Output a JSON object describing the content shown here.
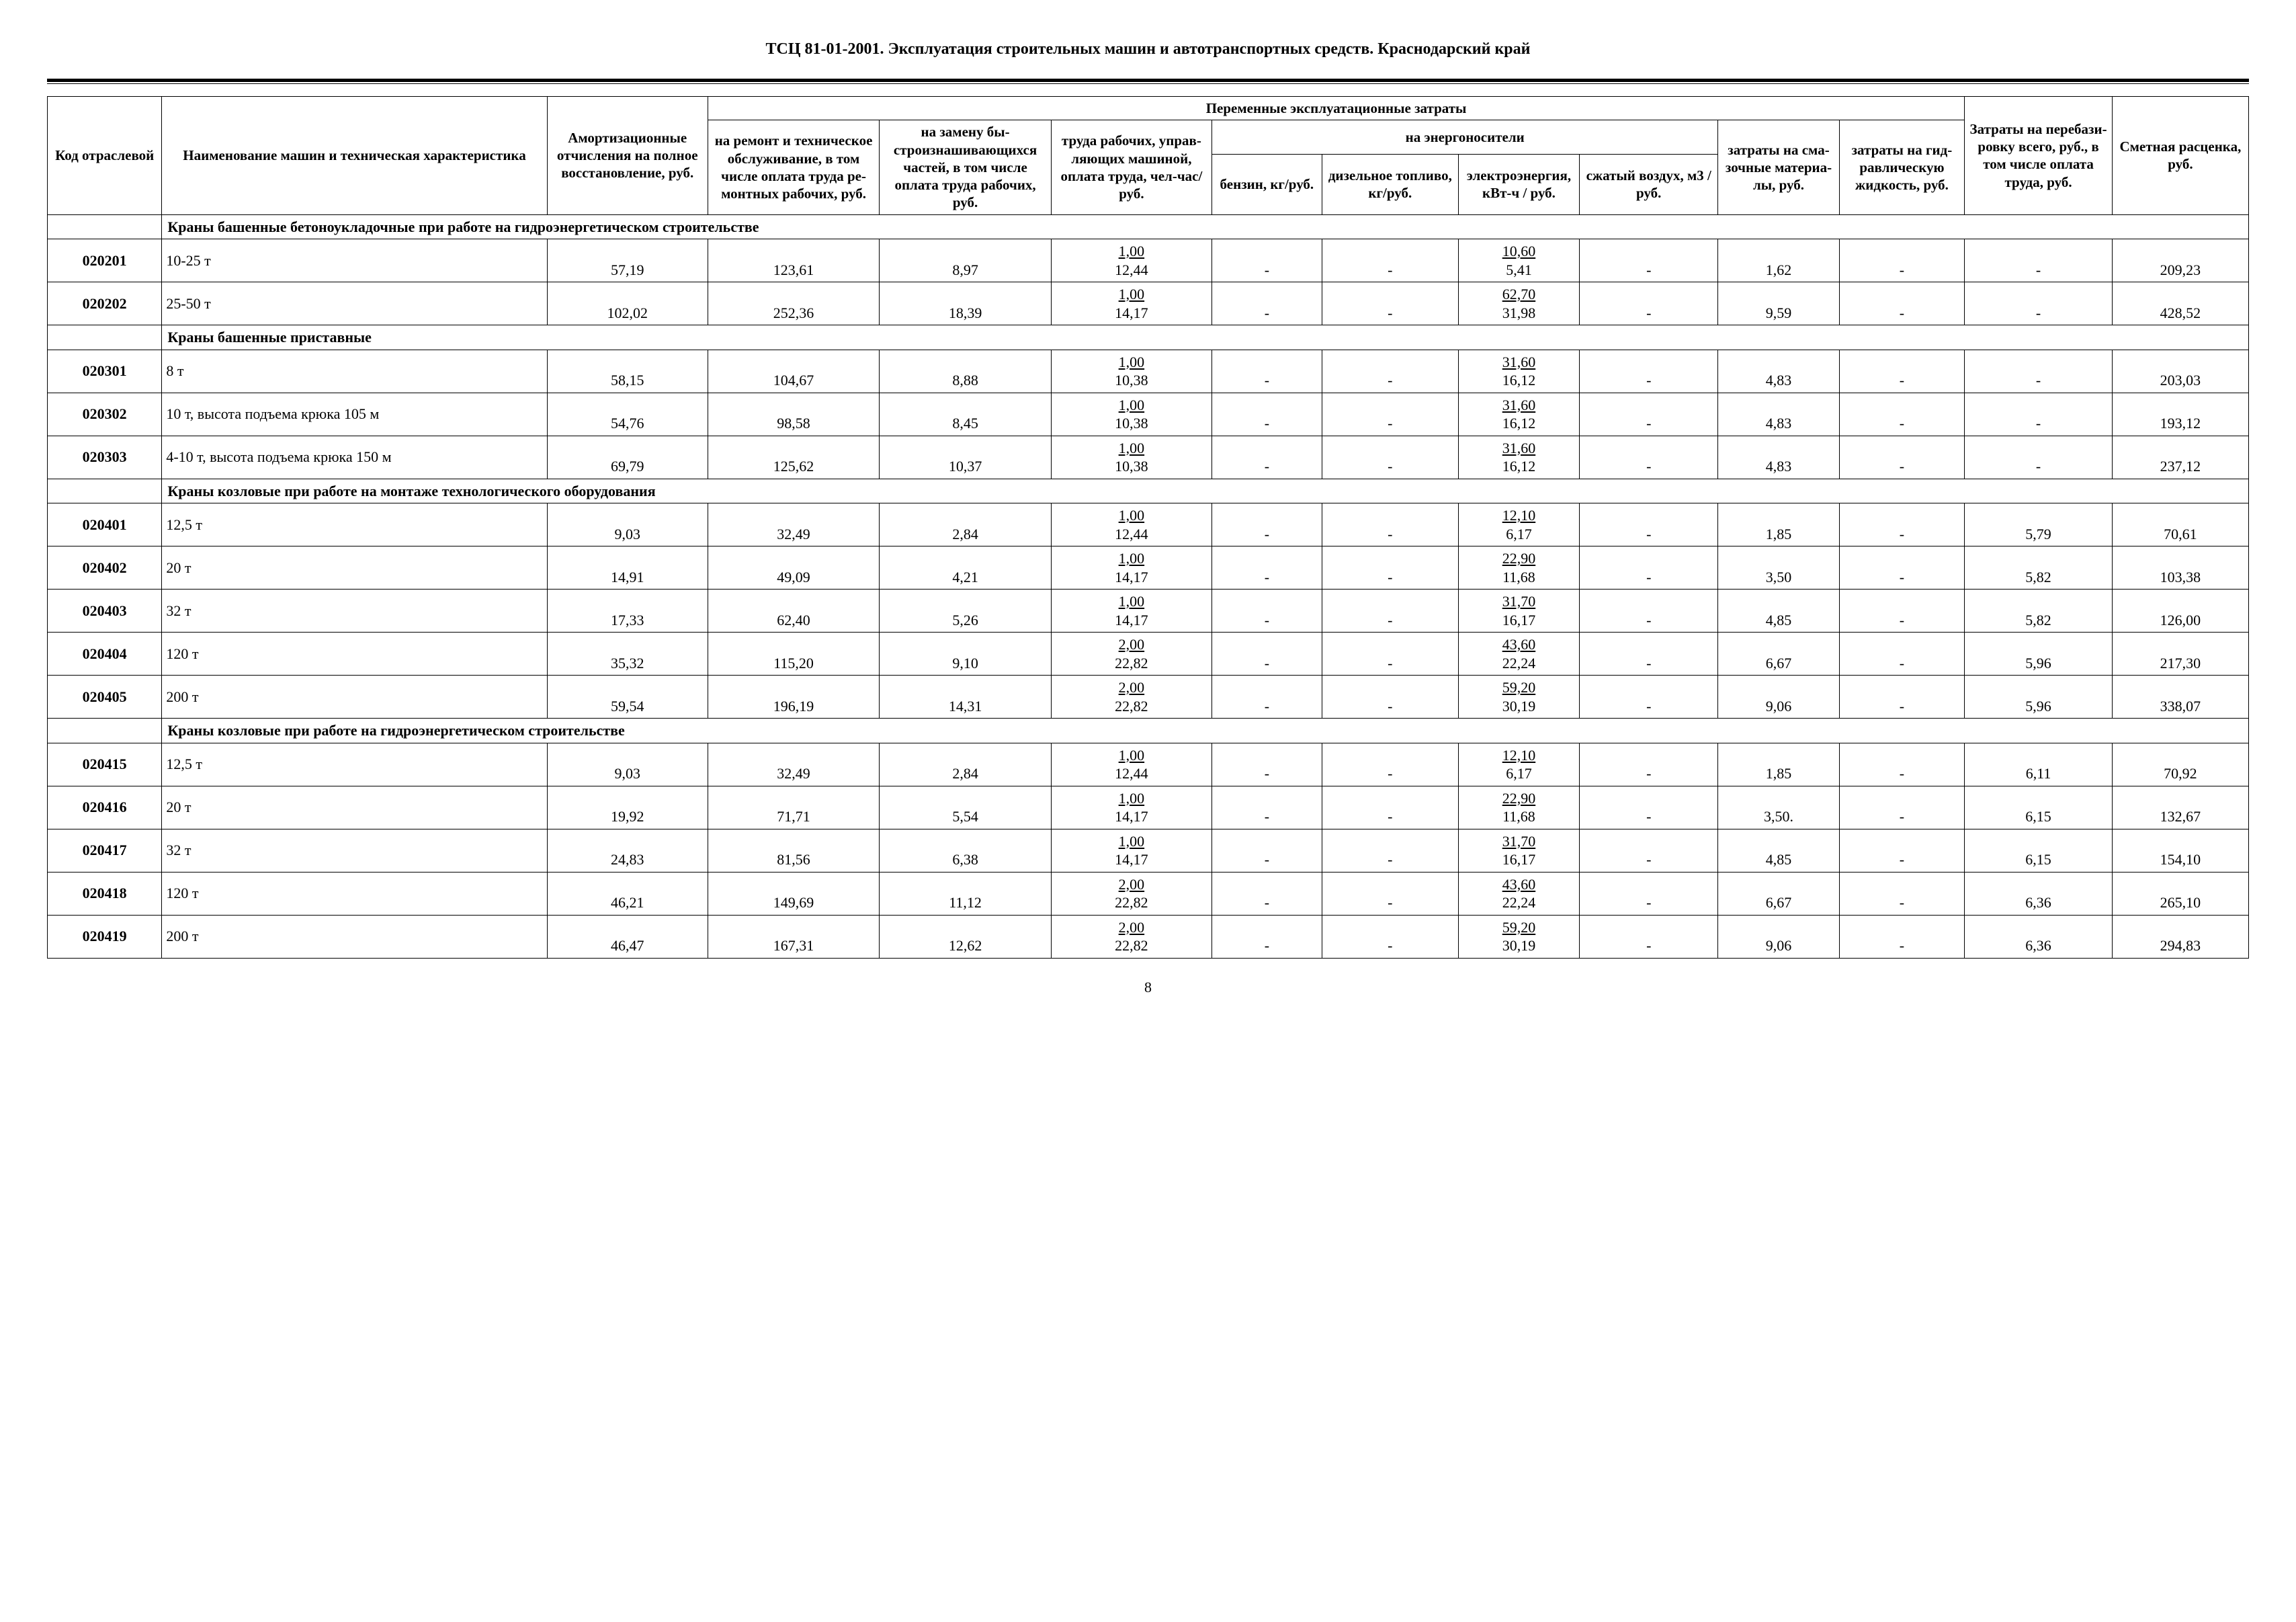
{
  "title": "ТСЦ 81-01-2001. Эксплуатация строительных машин и автотранспортных средств. Краснодарский край",
  "page_number": "8",
  "headers": {
    "code": "Код от­расле­вой",
    "name": "Наименование машин и техниче­ская характеристика",
    "amort": "Амортиза­ционные отчисления на полное восстанов­ление, руб.",
    "var_group": "Переменные эксплуатационные затраты",
    "repair": "на ремонт и техническое обслужива­ние, в том числе оплата труда ре­монтных ра­бочих, руб.",
    "wear": "на замену бы­строизнаши­вающихся частей, в том числе оплата труда рабо­чих, руб.",
    "labor": "труда рабо­чих, управ­ляющих машиной, оплата тру­да, чел-час/руб.",
    "energy_group": "на энергоносители",
    "petrol": "бензин, кг/руб.",
    "diesel": "дизельное топливо, кг/руб.",
    "electro": "электро­энергия, кВт-ч / руб.",
    "air": "сжатый воздух, м3 / руб.",
    "lube": "затраты на сма­зочные материа­лы, руб.",
    "hydro": "затраты на гид­равличе­скую жид­кость, руб.",
    "rebase": "Затраты на перебази­ровку всего, руб., в том числе опла­та труда, руб.",
    "estimate": "Сметная рас­ценка, руб."
  },
  "sections": [
    {
      "title": "Краны башенные бетоноукладочные при работе на гидроэнергетическом строительстве",
      "rows": [
        {
          "code": "020201",
          "name": "10-25 т",
          "amort": "57,19",
          "repair": "123,61",
          "wear": "8,97",
          "labor_t": "1,00",
          "labor_b": "12,44",
          "petrol": "-",
          "diesel": "-",
          "electro_t": "10,60",
          "electro_b": "5,41",
          "air": "-",
          "lube": "1,62",
          "hydro": "-",
          "rebase": "-",
          "est": "209,23"
        },
        {
          "code": "020202",
          "name": "25-50 т",
          "amort": "102,02",
          "repair": "252,36",
          "wear": "18,39",
          "labor_t": "1,00",
          "labor_b": "14,17",
          "petrol": "-",
          "diesel": "-",
          "electro_t": "62,70",
          "electro_b": "31,98",
          "air": "-",
          "lube": "9,59",
          "hydro": "-",
          "rebase": "-",
          "est": "428,52"
        }
      ]
    },
    {
      "title": "Краны башенные приставные",
      "rows": [
        {
          "code": "020301",
          "name": "8 т",
          "amort": "58,15",
          "repair": "104,67",
          "wear": "8,88",
          "labor_t": "1,00",
          "labor_b": "10,38",
          "petrol": "-",
          "diesel": "-",
          "electro_t": "31,60",
          "electro_b": "16,12",
          "air": "-",
          "lube": "4,83",
          "hydro": "-",
          "rebase": "-",
          "est": "203,03"
        },
        {
          "code": "020302",
          "name": "10 т, высота подъема крюка 105 м",
          "amort": "54,76",
          "repair": "98,58",
          "wear": "8,45",
          "labor_t": "1,00",
          "labor_b": "10,38",
          "petrol": "-",
          "diesel": "-",
          "electro_t": "31,60",
          "electro_b": "16,12",
          "air": "-",
          "lube": "4,83",
          "hydro": "-",
          "rebase": "-",
          "est": "193,12"
        },
        {
          "code": "020303",
          "name": "4-10 т, высота подъема крюка 150 м",
          "amort": "69,79",
          "repair": "125,62",
          "wear": "10,37",
          "labor_t": "1,00",
          "labor_b": "10,38",
          "petrol": "-",
          "diesel": "-",
          "electro_t": "31,60",
          "electro_b": "16,12",
          "air": "-",
          "lube": "4,83",
          "hydro": "-",
          "rebase": "-",
          "est": "237,12"
        }
      ]
    },
    {
      "title": "Краны козловые при работе на монтаже технологического оборудования",
      "rows": [
        {
          "code": "020401",
          "name": "12,5 т",
          "amort": "9,03",
          "repair": "32,49",
          "wear": "2,84",
          "labor_t": "1,00",
          "labor_b": "12,44",
          "petrol": "-",
          "diesel": "-",
          "electro_t": "12,10",
          "electro_b": "6,17",
          "air": "-",
          "lube": "1,85",
          "hydro": "-",
          "rebase": "5,79",
          "est": "70,61"
        },
        {
          "code": "020402",
          "name": "20 т",
          "amort": "14,91",
          "repair": "49,09",
          "wear": "4,21",
          "labor_t": "1,00",
          "labor_b": "14,17",
          "petrol": "-",
          "diesel": "-",
          "electro_t": "22,90",
          "electro_b": "11,68",
          "air": "-",
          "lube": "3,50",
          "hydro": "-",
          "rebase": "5,82",
          "est": "103,38"
        },
        {
          "code": "020403",
          "name": "32 т",
          "amort": "17,33",
          "repair": "62,40",
          "wear": "5,26",
          "labor_t": "1,00",
          "labor_b": "14,17",
          "petrol": "-",
          "diesel": "-",
          "electro_t": "31,70",
          "electro_b": "16,17",
          "air": "-",
          "lube": "4,85",
          "hydro": "-",
          "rebase": "5,82",
          "est": "126,00"
        },
        {
          "code": "020404",
          "name": "120 т",
          "amort": "35,32",
          "repair": "115,20",
          "wear": "9,10",
          "labor_t": "2,00",
          "labor_b": "22,82",
          "petrol": "-",
          "diesel": "-",
          "electro_t": "43,60",
          "electro_b": "22,24",
          "air": "-",
          "lube": "6,67",
          "hydro": "-",
          "rebase": "5,96",
          "est": "217,30"
        },
        {
          "code": "020405",
          "name": "200 т",
          "amort": "59,54",
          "repair": "196,19",
          "wear": "14,31",
          "labor_t": "2,00",
          "labor_b": "22,82",
          "petrol": "-",
          "diesel": "-",
          "electro_t": "59,20",
          "electro_b": "30,19",
          "air": "-",
          "lube": "9,06",
          "hydro": "-",
          "rebase": "5,96",
          "est": "338,07"
        }
      ]
    },
    {
      "title": "Краны козловые при работе на гидроэнергетическом строительстве",
      "rows": [
        {
          "code": "020415",
          "name": "12,5 т",
          "amort": "9,03",
          "repair": "32,49",
          "wear": "2,84",
          "labor_t": "1,00",
          "labor_b": "12,44",
          "petrol": "-",
          "diesel": "-",
          "electro_t": "12,10",
          "electro_b": "6,17",
          "air": "-",
          "lube": "1,85",
          "hydro": "-",
          "rebase": "6,11",
          "est": "70,92"
        },
        {
          "code": "020416",
          "name": "20 т",
          "amort": "19,92",
          "repair": "71,71",
          "wear": "5,54",
          "labor_t": "1,00",
          "labor_b": "14,17",
          "petrol": "-",
          "diesel": "-",
          "electro_t": "22,90",
          "electro_b": "11,68",
          "air": "-",
          "lube": "3,50.",
          "hydro": "-",
          "rebase": "6,15",
          "est": "132,67"
        },
        {
          "code": "020417",
          "name": "32 т",
          "amort": "24,83",
          "repair": "81,56",
          "wear": "6,38",
          "labor_t": "1,00",
          "labor_b": "14,17",
          "petrol": "-",
          "diesel": "-",
          "electro_t": "31,70",
          "electro_b": "16,17",
          "air": "-",
          "lube": "4,85",
          "hydro": "-",
          "rebase": "6,15",
          "est": "154,10"
        },
        {
          "code": "020418",
          "name": "120 т",
          "amort": "46,21",
          "repair": "149,69",
          "wear": "11,12",
          "labor_t": "2,00",
          "labor_b": "22,82",
          "petrol": "-",
          "diesel": "-",
          "electro_t": "43,60",
          "electro_b": "22,24",
          "air": "-",
          "lube": "6,67",
          "hydro": "-",
          "rebase": "6,36",
          "est": "265,10"
        },
        {
          "code": "020419",
          "name": "200 т",
          "amort": "46,47",
          "repair": "167,31",
          "wear": "12,62",
          "labor_t": "2,00",
          "labor_b": "22,82",
          "petrol": "-",
          "diesel": "-",
          "electro_t": "59,20",
          "electro_b": "30,19",
          "air": "-",
          "lube": "9,06",
          "hydro": "-",
          "rebase": "6,36",
          "est": "294,83"
        }
      ]
    }
  ]
}
